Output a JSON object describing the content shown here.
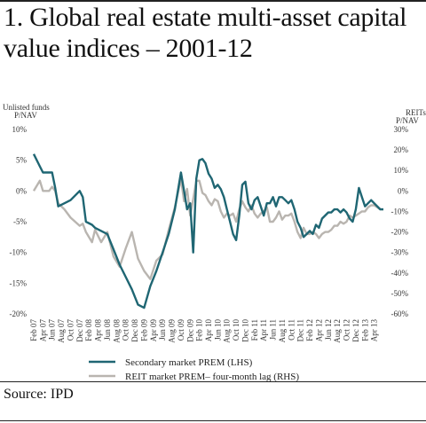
{
  "title": "1. Global real estate multi-asset capital value indices – 2001-12",
  "source": "Source: IPD",
  "chart_data": {
    "type": "line",
    "left_axis_label": [
      "Unlisted funds",
      "P/NAV"
    ],
    "right_axis_label": [
      "REITs",
      "P/NAV"
    ],
    "left_ylim": [
      -20,
      10
    ],
    "right_ylim": [
      -60,
      30
    ],
    "left_ticks": [
      "10%",
      "5%",
      "0%",
      "-5%",
      "-10%",
      "-15%",
      "-20%"
    ],
    "right_ticks": [
      "30%",
      "20%",
      "10%",
      "0%",
      "-10%",
      "-20%",
      "-30%",
      "-40%",
      "-50%",
      "-60%"
    ],
    "categories": [
      "Feb 07",
      "Apr 07",
      "Jun 07",
      "Aug 07",
      "Oct 07",
      "Dec 07",
      "Feb 08",
      "Apr 08",
      "Jun 08",
      "Aug 08",
      "Oct 08",
      "Dec 08",
      "Feb 09",
      "Apr 09",
      "Jun 09",
      "Aug 09",
      "Oct 09",
      "Dec 09",
      "Feb 10",
      "Apr 10",
      "Jun 10",
      "Aug 10",
      "Oct 10",
      "Dec 10",
      "Feb 11",
      "Apr 11",
      "Jun 11",
      "Aug 11",
      "Oct 11",
      "Dec 11",
      "Feb 12",
      "Apr 12",
      "Jun 12",
      "Aug 12",
      "Oct 12",
      "Dec 12",
      "Feb 13",
      "Apr 13"
    ],
    "grid": false,
    "legend_position": "bottom",
    "series": [
      {
        "name": "Secondary market PREM (LHS)",
        "axis": "left",
        "color": "#1f6673",
        "x": [
          0,
          2,
          3,
          5,
          6,
          7,
          8,
          10,
          12,
          15,
          16,
          17,
          19,
          20,
          22,
          24,
          26,
          28,
          30,
          32,
          34,
          36,
          38,
          40,
          42,
          44,
          46,
          48,
          49,
          50,
          51,
          52,
          53,
          54,
          55,
          56,
          57,
          58,
          59,
          60,
          61,
          62,
          63,
          64,
          65,
          66,
          67,
          68,
          69,
          70,
          71,
          72,
          73,
          74,
          75,
          76,
          77,
          78,
          79,
          80,
          81,
          82,
          83,
          84,
          85,
          86,
          87,
          88,
          89,
          90,
          91,
          92,
          93,
          94,
          95,
          96,
          97,
          98,
          99,
          100,
          101,
          102,
          103,
          104,
          105,
          106,
          107,
          108,
          109,
          110,
          111,
          112,
          113,
          114
        ],
        "values": [
          6,
          4,
          3,
          3,
          3,
          0.5,
          -2.5,
          -2,
          -1.5,
          0,
          -1,
          -5,
          -5.5,
          -6,
          -6.5,
          -7,
          -9.5,
          -12,
          -14,
          -16,
          -18.5,
          -19,
          -15.5,
          -13,
          -10,
          -7,
          -3,
          3,
          0,
          -3,
          -2,
          -10,
          2,
          5,
          5.2,
          4.5,
          2.8,
          2,
          0.5,
          1,
          0.3,
          -1,
          -3,
          -5,
          -7,
          -8,
          -4,
          1,
          1.5,
          -2,
          -3,
          -1.5,
          -1,
          -2.5,
          -4,
          -2,
          -2,
          -1,
          -2.5,
          -1,
          -1,
          -1.5,
          -2,
          -1.5,
          -3,
          -5,
          -6,
          -7.5,
          -7,
          -6.5,
          -7,
          -5.5,
          -6,
          -4.5,
          -4,
          -3.5,
          -3.5,
          -3,
          -3,
          -3.5,
          -3,
          -3.5,
          -4.5,
          -5,
          -3,
          0.5,
          -1,
          -2.5,
          -2,
          -1.5,
          -2,
          -2.5,
          -3,
          -3
        ]
      },
      {
        "name": "REIT market PREM– four-month lag (RHS)",
        "axis": "right",
        "color": "#b9b5b0",
        "x": [
          0,
          2,
          3,
          5,
          6,
          7,
          8,
          10,
          12,
          15,
          16,
          17,
          19,
          20,
          22,
          24,
          26,
          28,
          30,
          32,
          34,
          36,
          38,
          40,
          42,
          44,
          46,
          48,
          49,
          50,
          51,
          52,
          53,
          54,
          55,
          56,
          57,
          58,
          59,
          60,
          61,
          62,
          63,
          64,
          65,
          66,
          67,
          68,
          69,
          70,
          71,
          72,
          73,
          74,
          75,
          76,
          77,
          78,
          79,
          80,
          81,
          82,
          83,
          84,
          85,
          86,
          87,
          88,
          89,
          90,
          91,
          92,
          93,
          94,
          95,
          96,
          97,
          98,
          99,
          100,
          101,
          102,
          103,
          104,
          105,
          106,
          107,
          108,
          109,
          110,
          111,
          112,
          113,
          114
        ],
        "values": [
          0,
          5,
          0,
          0,
          2,
          0,
          -6,
          -9,
          -13,
          -17,
          -16,
          -20,
          -25,
          -19,
          -25,
          -20,
          -32,
          -37,
          -28,
          -20,
          -33,
          -39,
          -43,
          -34,
          -31,
          -19,
          -8,
          6,
          -5,
          1,
          -12,
          -4,
          5,
          5,
          -1,
          -2,
          -5,
          -7,
          -4,
          -5,
          -10,
          -13,
          -11,
          -12,
          -11,
          -15,
          -9,
          -5,
          -8,
          -10,
          -7,
          -11,
          -13,
          -11,
          -10,
          -8,
          -15,
          -15,
          -13,
          -10,
          -14,
          -12,
          -12,
          -11,
          -15,
          -20,
          -23,
          -18,
          -21,
          -21,
          -20,
          -21,
          -23,
          -21,
          -20,
          -20,
          -19,
          -17,
          -17,
          -15,
          -16,
          -15,
          -12,
          -13,
          -12,
          -11,
          -10,
          -10,
          -8,
          -7,
          -7,
          -8,
          -9,
          -9
        ]
      }
    ]
  }
}
